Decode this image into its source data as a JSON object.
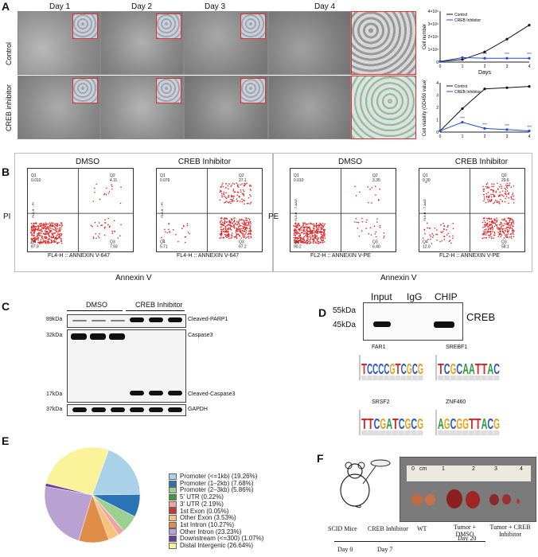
{
  "panels": {
    "A": {
      "label": "A",
      "days": [
        "Day 1",
        "Day 2",
        "Day 3",
        "Day 4"
      ],
      "rows": [
        "Control",
        "CREB inhibitor"
      ],
      "growth_chart": {
        "type": "line",
        "x": [
          0,
          1,
          2,
          3,
          4
        ],
        "xlabel": "Days",
        "ylabel": "Cell number",
        "yticks": [
          "0",
          "1×10⁵",
          "2×10⁵",
          "3×10⁵",
          "4×10⁵"
        ],
        "series": [
          {
            "name": "Control",
            "values": [
              0.05,
              0.2,
              0.8,
              1.8,
              2.9
            ],
            "color": "#111111"
          },
          {
            "name": "CREB Inhibitor",
            "values": [
              0.05,
              0.35,
              0.3,
              0.3,
              0.3
            ],
            "color": "#1f4fd6"
          }
        ],
        "ylim": [
          0,
          4
        ],
        "sig": [
          "***",
          "***",
          "***"
        ]
      },
      "viability_chart": {
        "type": "line",
        "x": [
          0,
          1,
          2,
          3,
          4
        ],
        "ylabel": "Cell viability (OD450 value)",
        "yticks": [
          "0",
          "1",
          "2",
          "3",
          "4"
        ],
        "series": [
          {
            "name": "Control",
            "values": [
              0.1,
              1.9,
              3.5,
              3.6,
              3.7
            ],
            "color": "#111111"
          },
          {
            "name": "CREB Inhibitor",
            "values": [
              0.1,
              0.8,
              0.3,
              0.2,
              0.1
            ],
            "color": "#1f4fd6"
          }
        ],
        "ylim": [
          0,
          4
        ],
        "sig": [
          "***",
          "***",
          "***",
          "***"
        ]
      }
    },
    "B": {
      "label": "B",
      "left_title_a": "DMSO",
      "left_title_b": "CREB Inhibitor",
      "right_title_a": "DMSO",
      "right_title_b": "CREB Inhibitor",
      "ylabel_left": "PI",
      "ylabel_right": "PE",
      "xlabel_left": "Annexin V",
      "xlabel_right": "Annexin V",
      "plots": [
        {
          "q1": "0.010",
          "q2": "4.11",
          "q3": "7.93",
          "q4": "87.9",
          "xaxis": "FL4-H :: ANNEXIN V-647",
          "yaxis": "FL3-H :: PI"
        },
        {
          "q1": "0.076",
          "q2": "27.1",
          "q3": "67.2",
          "q4": "5.71",
          "xaxis": "FL4-H :: ANNEXIN V-647",
          "yaxis": "FL3-H :: PI"
        },
        {
          "q1": "0.010",
          "q2": "3.35",
          "q3": "6.40",
          "q4": "90.2",
          "xaxis": "FL2-H :: ANNEXIN V-PE",
          "yaxis": "FL3-H :: 7-AAD"
        },
        {
          "q1": "0.30",
          "q2": "29.6",
          "q3": "58.1",
          "q4": "12.0",
          "xaxis": "FL2-H :: ANNEXIN V-PE",
          "yaxis": "FL3-H :: 7-AAD"
        }
      ],
      "quad_labels": [
        "Q1",
        "Q2",
        "Q3",
        "Q4"
      ]
    },
    "C": {
      "label": "C",
      "group_dmso": "DMSO",
      "group_creb": "CREB Inhibitor",
      "mw": [
        "89kDa",
        "32kDa",
        "17kDa",
        "37kDa"
      ],
      "bands": [
        "Cleaved-PARP1",
        "Caspase3",
        "Cleaved-Caspase3",
        "GAPDH"
      ]
    },
    "D": {
      "label": "D",
      "lanes": [
        "Input",
        "IgG",
        "CHIP"
      ],
      "mw": [
        "55kDa",
        "45kDa"
      ],
      "protein": "CREB",
      "motifs": [
        {
          "name": "FAR1",
          "seq": "TCCCCGTCGCG"
        },
        {
          "name": "SREBF1",
          "seq": "TCGCAATTAC"
        },
        {
          "name": "SRSF2",
          "seq": "TTCGATCGCG"
        },
        {
          "name": "ZNF460",
          "seq": "AGCGGTTACG"
        }
      ]
    },
    "E": {
      "label": "E",
      "chart_data": {
        "type": "pie",
        "categories": [
          "Promoter (<=1kb) (19.26%)",
          "Promoter (1–2kb) (7.68%)",
          "Promoter (2–3kb) (5.86%)",
          "5' UTR (0.22%)",
          "3' UTR (2.19%)",
          "1st Exon (0.05%)",
          "Other Exon (3.53%)",
          "1st Intron (10.27%)",
          "Other Intron (23.23%)",
          "Downstream (<=300) (1.07%)",
          "Distal Intergenic (26.64%)"
        ],
        "values": [
          19.26,
          7.68,
          5.86,
          0.22,
          2.19,
          0.05,
          3.53,
          10.27,
          23.23,
          1.07,
          26.64
        ],
        "colors": [
          "#a9d1e8",
          "#2a73b5",
          "#9bd08e",
          "#3d9b3a",
          "#f1a3a3",
          "#d62f2f",
          "#f7c27a",
          "#e08d4a",
          "#b9a2d1",
          "#6a3e98",
          "#fbf39a",
          "#a6582b"
        ]
      }
    },
    "F": {
      "label": "F",
      "cm": "cm",
      "ruler": [
        "0",
        "1",
        "2",
        "3",
        "4"
      ],
      "groups": [
        "WT",
        "Tumor + DMSO",
        "Tumor + CREB Inhibitor"
      ],
      "steps": [
        "SCID Mice",
        "CREB Inhibitor"
      ],
      "timeline": [
        "Day 0",
        "Day 7",
        "Day 20"
      ]
    }
  }
}
